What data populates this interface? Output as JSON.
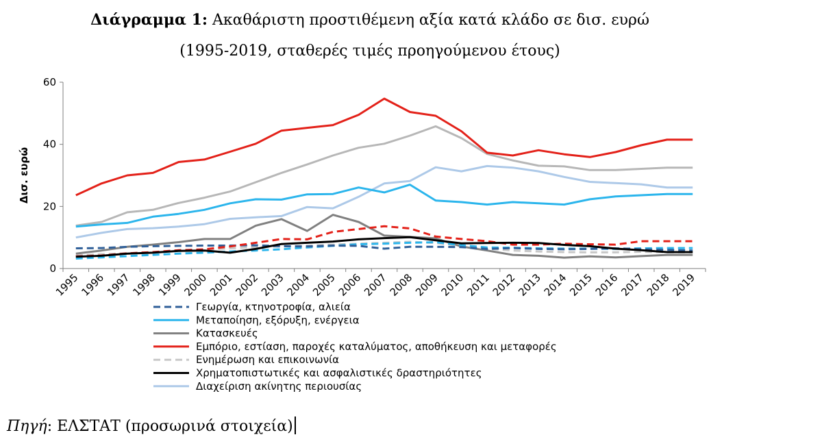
{
  "title": {
    "prefix": "Διάγραμμα 1:",
    "line1": " Ακαθάριστη προστιθέμενη αξία κατά κλάδο σε δισ. ευρώ",
    "line2": "(1995-2019, σταθερές τιμές προηγούμενου έτους)"
  },
  "source": {
    "label": "Πηγή",
    "text": ": ΕΛΣΤΑΤ (προσωρινά στοιχεία)"
  },
  "chart_data": {
    "type": "line",
    "ylabel": "Δισ. ευρώ",
    "xlabel": "",
    "ylim": [
      0,
      60
    ],
    "yticks": [
      0,
      20,
      40,
      60
    ],
    "categories": [
      "1995",
      "1996",
      "1997",
      "1998",
      "1999",
      "2000",
      "2001",
      "2002",
      "2003",
      "2004",
      "2005",
      "2006",
      "2007",
      "2008",
      "2009",
      "2010",
      "2011",
      "2012",
      "2013",
      "2014",
      "2015",
      "2016",
      "2017",
      "2018",
      "2019"
    ],
    "legend_position": "bottom",
    "series": [
      {
        "name": "Γεωργία, κτηνοτροφία, αλιεία",
        "color": "#2f5f98",
        "dash": true,
        "values": [
          6.5,
          6.6,
          7.0,
          7.2,
          7.3,
          7.4,
          7.4,
          7.5,
          7.2,
          7.1,
          7.4,
          7.3,
          6.4,
          7.0,
          7.0,
          6.9,
          6.3,
          6.6,
          6.3,
          6.2,
          6.3,
          6.5,
          6.2,
          6.0,
          5.8
        ]
      },
      {
        "name": "Μεταποίηση, εξόρυξη, ενέργεια",
        "color": "#2bb5ec",
        "dash": false,
        "values": [
          13.5,
          14.2,
          14.7,
          16.7,
          17.6,
          18.9,
          21.0,
          22.3,
          22.2,
          23.9,
          24.0,
          26.1,
          24.5,
          27.0,
          21.9,
          21.4,
          20.6,
          21.4,
          21.0,
          20.6,
          22.3,
          23.2,
          23.6,
          24.0,
          24.0
        ]
      },
      {
        "name": "Κατασκευές",
        "color": "#808080",
        "dash": false,
        "values": [
          4.8,
          5.8,
          7.0,
          7.7,
          8.5,
          9.5,
          9.5,
          13.8,
          15.9,
          12.1,
          17.3,
          15.0,
          10.6,
          10.2,
          9.7,
          7.1,
          5.8,
          4.4,
          4.1,
          3.5,
          3.9,
          3.6,
          4.0,
          4.4,
          4.4
        ]
      },
      {
        "name": "Εμπόριο, εστίαση, παροχές καταλύματος, αποθήκευση και μεταφορές",
        "color": "#e32119",
        "dash": false,
        "values": [
          23.6,
          27.4,
          30.0,
          30.8,
          34.3,
          35.1,
          37.6,
          40.2,
          44.4,
          45.3,
          46.2,
          49.5,
          54.7,
          50.4,
          49.2,
          44.2,
          37.3,
          36.4,
          38.1,
          36.8,
          35.9,
          37.5,
          39.7,
          41.5,
          41.5
        ]
      },
      {
        "name": "Ενημέρωση και επικοινωνία",
        "color": "#c8c8c8",
        "dash": true,
        "values": [
          4.2,
          4.6,
          4.9,
          5.3,
          5.7,
          6.1,
          6.5,
          6.9,
          7.1,
          7.4,
          7.7,
          8.0,
          8.3,
          8.6,
          8.2,
          7.3,
          6.4,
          5.8,
          5.5,
          5.3,
          5.2,
          5.2,
          5.4,
          5.2,
          5.2
        ]
      },
      {
        "name": "Χρηματοπιστωτικές και ασφαλιστικές δραστηριότητες",
        "color": "#000000",
        "dash": false,
        "values": [
          3.8,
          4.1,
          4.8,
          5.1,
          5.7,
          5.8,
          5.1,
          6.3,
          7.9,
          8.3,
          8.7,
          9.4,
          9.8,
          10.1,
          9.1,
          8.1,
          8.2,
          8.3,
          8.2,
          7.6,
          7.2,
          6.4,
          5.9,
          5.3,
          5.3
        ]
      },
      {
        "name": "Διαχείριση ακίνητης περιουσίας",
        "color": "#adc9e8",
        "dash": false,
        "values": [
          10.0,
          11.5,
          12.7,
          13.0,
          13.5,
          14.3,
          16.0,
          16.5,
          16.9,
          19.8,
          19.4,
          23.1,
          27.4,
          28.2,
          32.6,
          31.3,
          33.0,
          32.5,
          31.3,
          29.5,
          27.9,
          27.5,
          27.1,
          26.1,
          26.1
        ]
      },
      {
        "name": "",
        "color": "#e32119",
        "dash": true,
        "in_legend": false,
        "values": [
          3.9,
          4.2,
          4.9,
          5.3,
          5.9,
          6.2,
          7.1,
          8.3,
          9.5,
          9.4,
          11.8,
          12.7,
          13.6,
          12.9,
          10.3,
          9.5,
          8.8,
          7.7,
          7.7,
          8.0,
          7.8,
          7.7,
          8.8,
          8.8,
          8.8
        ]
      },
      {
        "name": "",
        "color": "#b7b7b7",
        "dash": false,
        "in_legend": false,
        "values": [
          13.8,
          15.0,
          18.1,
          18.9,
          21.1,
          22.8,
          24.8,
          27.8,
          30.8,
          33.5,
          36.4,
          38.9,
          40.2,
          42.8,
          45.8,
          42.0,
          36.9,
          34.8,
          33.1,
          32.9,
          31.7,
          31.7,
          32.1,
          32.5,
          32.5
        ]
      },
      {
        "name": "",
        "color": "#2bb5ec",
        "dash": true,
        "in_legend": false,
        "values": [
          3.2,
          3.6,
          4.0,
          4.4,
          4.8,
          5.1,
          5.5,
          5.8,
          6.2,
          6.8,
          7.3,
          7.8,
          8.0,
          8.3,
          8.5,
          7.5,
          6.8,
          6.7,
          6.5,
          6.4,
          6.4,
          6.3,
          6.5,
          6.6,
          6.6
        ]
      }
    ]
  }
}
